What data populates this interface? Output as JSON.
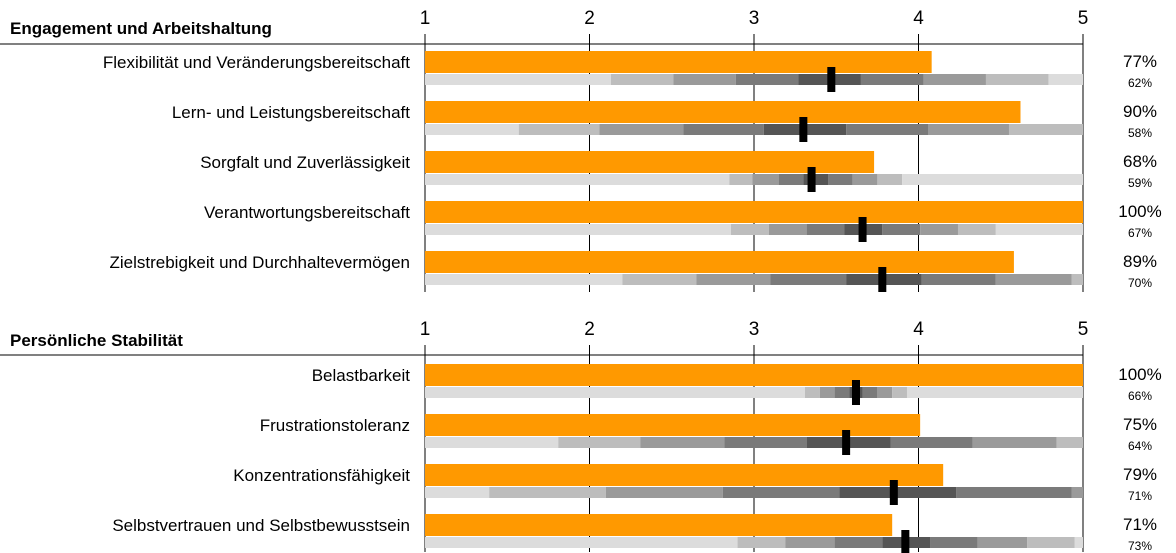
{
  "chart_data": {
    "type": "bar",
    "xlim": [
      1,
      5
    ],
    "ticks": [
      "1",
      "2",
      "3",
      "4",
      "5"
    ],
    "colors": {
      "bar": "#FF9900",
      "marker": "#000000",
      "band_scale": [
        "#DCDCDC",
        "#BDBDBD",
        "#9A9A9A",
        "#7A7A7A",
        "#555555"
      ]
    },
    "sections": [
      {
        "title": "Engagement und Arbeitshaltung",
        "rows": [
          {
            "label": "Flexibilität und Veränderungsbereitschaft",
            "value": 4.08,
            "marker": 3.47,
            "percent": "77%",
            "percent2": "62%",
            "bands": [
              [
                1.0,
                2.13,
                0
              ],
              [
                2.13,
                2.51,
                1
              ],
              [
                2.51,
                2.89,
                2
              ],
              [
                2.89,
                3.27,
                3
              ],
              [
                3.27,
                3.65,
                4
              ],
              [
                3.65,
                4.03,
                3
              ],
              [
                4.03,
                4.41,
                2
              ],
              [
                4.41,
                4.79,
                1
              ],
              [
                4.79,
                5.0,
                0
              ]
            ]
          },
          {
            "label": "Lern- und Leistungsbereitschaft",
            "value": 4.62,
            "marker": 3.3,
            "percent": "90%",
            "percent2": "58%",
            "bands": [
              [
                1.0,
                1.57,
                0
              ],
              [
                1.57,
                2.06,
                1
              ],
              [
                2.06,
                2.57,
                2
              ],
              [
                2.57,
                3.06,
                3
              ],
              [
                3.06,
                3.56,
                4
              ],
              [
                3.56,
                4.06,
                3
              ],
              [
                4.06,
                4.55,
                2
              ],
              [
                4.55,
                5.0,
                1
              ]
            ]
          },
          {
            "label": "Sorgfalt und Zuverlässigkeit",
            "value": 3.73,
            "marker": 3.35,
            "percent": "68%",
            "percent2": "59%",
            "bands": [
              [
                1.0,
                2.85,
                0
              ],
              [
                2.85,
                2.99,
                1
              ],
              [
                2.99,
                3.15,
                2
              ],
              [
                3.15,
                3.3,
                3
              ],
              [
                3.3,
                3.45,
                4
              ],
              [
                3.45,
                3.6,
                3
              ],
              [
                3.6,
                3.75,
                2
              ],
              [
                3.75,
                3.9,
                1
              ],
              [
                3.9,
                5.0,
                0
              ]
            ]
          },
          {
            "label": "Verantwortungsbereitschaft",
            "value": 5.0,
            "marker": 3.66,
            "percent": "100%",
            "percent2": "67%",
            "bands": [
              [
                1.0,
                2.86,
                0
              ],
              [
                2.86,
                3.09,
                1
              ],
              [
                3.09,
                3.32,
                2
              ],
              [
                3.32,
                3.55,
                3
              ],
              [
                3.55,
                3.78,
                4
              ],
              [
                3.78,
                4.01,
                3
              ],
              [
                4.01,
                4.24,
                2
              ],
              [
                4.24,
                4.47,
                1
              ],
              [
                4.47,
                5.0,
                0
              ]
            ]
          },
          {
            "label": "Zielstrebigkeit und Durchhaltevermögen",
            "value": 4.58,
            "marker": 3.78,
            "percent": "89%",
            "percent2": "70%",
            "bands": [
              [
                1.0,
                2.2,
                0
              ],
              [
                2.2,
                2.65,
                1
              ],
              [
                2.65,
                3.1,
                2
              ],
              [
                3.1,
                3.56,
                3
              ],
              [
                3.56,
                4.02,
                4
              ],
              [
                4.02,
                4.47,
                3
              ],
              [
                4.47,
                4.93,
                2
              ],
              [
                4.93,
                5.0,
                1
              ]
            ]
          }
        ]
      },
      {
        "title": "Persönliche Stabilität",
        "rows": [
          {
            "label": "Belastbarkeit",
            "value": 5.0,
            "marker": 3.62,
            "percent": "100%",
            "percent2": "66%",
            "bands": [
              [
                1.0,
                3.31,
                0
              ],
              [
                3.31,
                3.4,
                1
              ],
              [
                3.4,
                3.49,
                2
              ],
              [
                3.49,
                3.58,
                3
              ],
              [
                3.58,
                3.66,
                4
              ],
              [
                3.66,
                3.75,
                3
              ],
              [
                3.75,
                3.84,
                2
              ],
              [
                3.84,
                3.93,
                1
              ],
              [
                3.93,
                5.0,
                0
              ]
            ]
          },
          {
            "label": "Frustrationstoleranz",
            "value": 4.01,
            "marker": 3.56,
            "percent": "75%",
            "percent2": "64%",
            "bands": [
              [
                1.0,
                1.81,
                0
              ],
              [
                1.81,
                2.31,
                1
              ],
              [
                2.31,
                2.82,
                2
              ],
              [
                2.82,
                3.32,
                3
              ],
              [
                3.32,
                3.83,
                4
              ],
              [
                3.83,
                4.33,
                3
              ],
              [
                4.33,
                4.84,
                2
              ],
              [
                4.84,
                5.0,
                1
              ]
            ]
          },
          {
            "label": "Konzentrationsfähigkeit",
            "value": 4.15,
            "marker": 3.85,
            "percent": "79%",
            "percent2": "71%",
            "bands": [
              [
                1.0,
                1.39,
                0
              ],
              [
                1.39,
                2.1,
                1
              ],
              [
                2.1,
                2.81,
                2
              ],
              [
                2.81,
                3.52,
                3
              ],
              [
                3.52,
                4.23,
                4
              ],
              [
                4.23,
                4.93,
                3
              ],
              [
                4.93,
                5.0,
                2
              ]
            ]
          },
          {
            "label": "Selbstvertrauen und Selbstbewusstsein",
            "value": 3.84,
            "marker": 3.92,
            "percent": "71%",
            "percent2": "73%",
            "bands": [
              [
                1.0,
                2.9,
                0
              ],
              [
                2.9,
                3.19,
                1
              ],
              [
                3.19,
                3.49,
                2
              ],
              [
                3.49,
                3.78,
                3
              ],
              [
                3.78,
                4.07,
                4
              ],
              [
                4.07,
                4.36,
                3
              ],
              [
                4.36,
                4.66,
                2
              ],
              [
                4.66,
                4.95,
                1
              ],
              [
                4.95,
                5.0,
                0
              ]
            ]
          }
        ]
      }
    ]
  }
}
